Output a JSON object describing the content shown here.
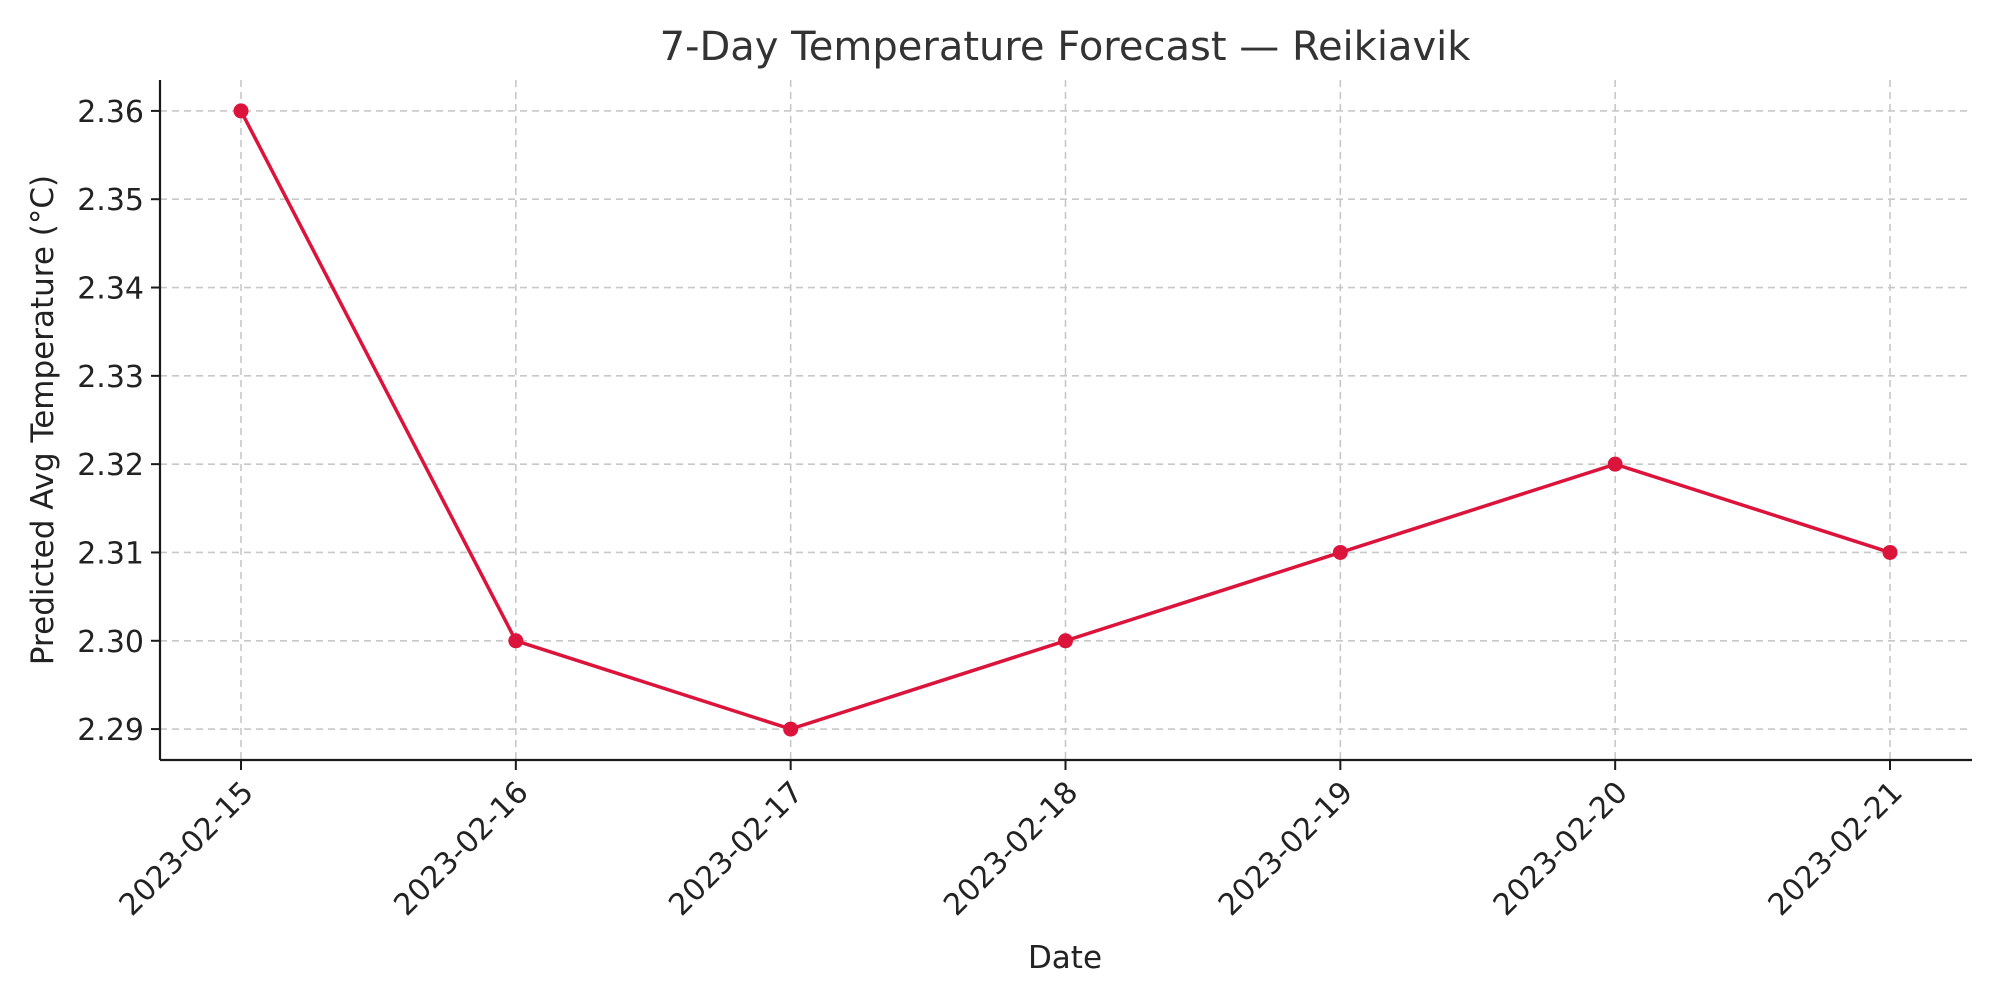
{
  "chart_data": {
    "type": "line",
    "title": "7-Day Temperature Forecast — Reikiavik",
    "xlabel": "Date",
    "ylabel": "Predicted Avg Temperature (°C)",
    "categories": [
      "2023-02-15",
      "2023-02-16",
      "2023-02-17",
      "2023-02-18",
      "2023-02-19",
      "2023-02-20",
      "2023-02-21"
    ],
    "values": [
      2.36,
      2.3,
      2.29,
      2.3,
      2.31,
      2.32,
      2.31
    ],
    "yticks": [
      "2.29",
      "2.30",
      "2.31",
      "2.32",
      "2.33",
      "2.34",
      "2.35",
      "2.36"
    ],
    "ylim": [
      2.2865,
      2.3635
    ],
    "grid": true,
    "marker": "circle",
    "color": "#dc143c"
  }
}
